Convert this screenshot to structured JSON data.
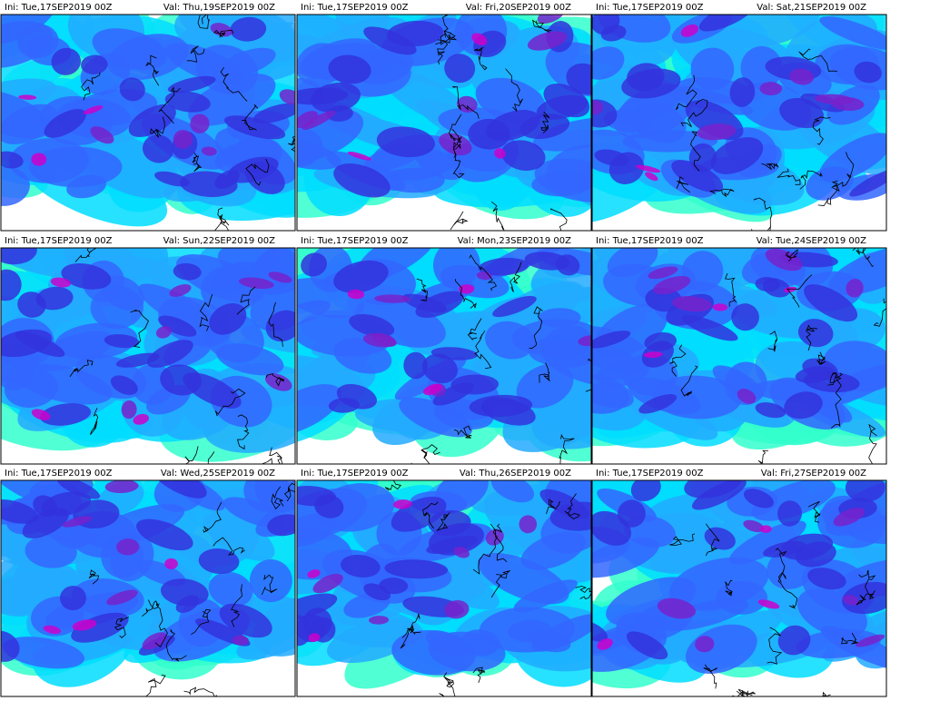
{
  "panels": [
    {
      "ini": "Ini: Tue,17SEP2019 00Z",
      "valid": "Val: Thu,19SEP2019 00Z"
    },
    {
      "ini": "Ini: Tue,17SEP2019 00Z",
      "valid": "Val: Fri,20SEP2019 00Z"
    },
    {
      "ini": "Ini: Tue,17SEP2019 00Z",
      "valid": "Val: Sat,21SEP2019 00Z"
    },
    {
      "ini": "Ini: Tue,17SEP2019 00Z",
      "valid": "Val: Sun,22SEP2019 00Z"
    },
    {
      "ini": "Ini: Tue,17SEP2019 00Z",
      "valid": "Val: Mon,23SEP2019 00Z"
    },
    {
      "ini": "Ini: Tue,17SEP2019 00Z",
      "valid": "Val: Tue,24SEP2019 00Z"
    },
    {
      "ini": "Ini: Tue,17SEP2019 00Z",
      "valid": "Val: Wed,25SEP2019 00Z"
    },
    {
      "ini": "Ini: Tue,17SEP2019 00Z",
      "valid": "Val: Thu,26SEP2019 00Z"
    },
    {
      "ini": "Ini: Tue,17SEP2019 00Z",
      "valid": "Val: Fri,27SEP2019 00Z"
    }
  ]
}
